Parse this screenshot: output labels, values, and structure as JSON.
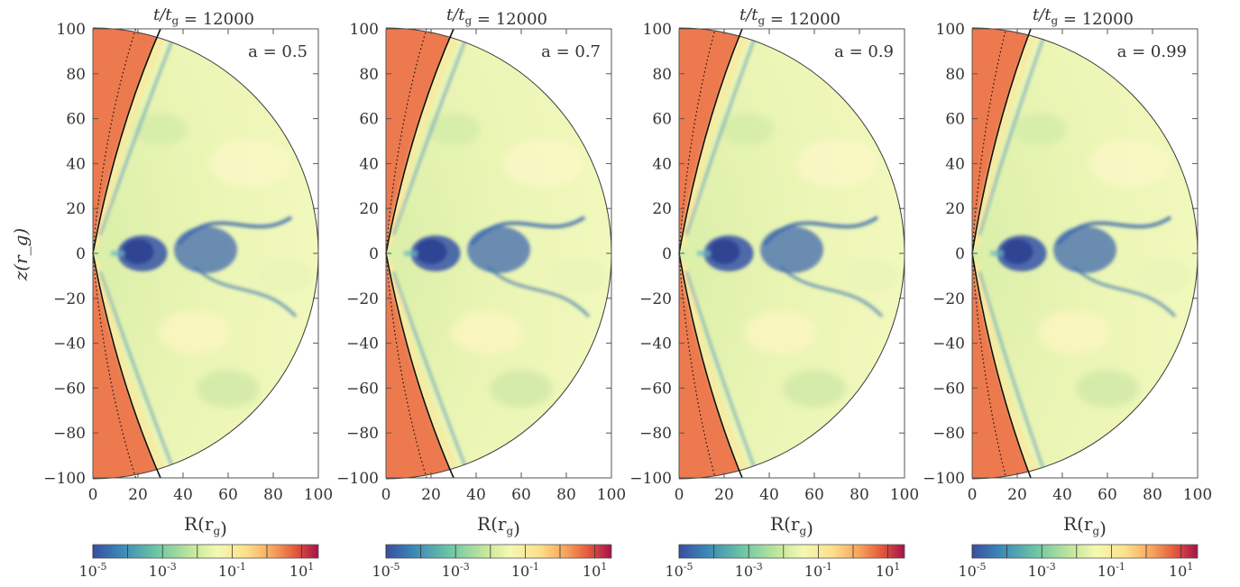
{
  "figure": {
    "ylabel": "z(r_g)",
    "xlabel": "R(r_g)"
  },
  "chart_data": [
    {
      "type": "heatmap",
      "title": "t/t_g = 12000",
      "annotation": "a = 0.5",
      "xlim": [
        0,
        100
      ],
      "ylim": [
        -100,
        100
      ],
      "xticks": [
        0,
        20,
        40,
        60,
        80,
        100
      ],
      "yticks": [
        100,
        80,
        60,
        40,
        20,
        0,
        -20,
        -40,
        -60,
        -80,
        -100
      ],
      "colorbar": {
        "scale": "log",
        "range": [
          1e-05,
          30
        ],
        "ticks": [
          "10^-5",
          "10^-3",
          "10^-1",
          "10^1"
        ]
      },
      "jet_boundary_R_at_edge": 30,
      "dotted_boundary_R_at_edge": 19
    },
    {
      "type": "heatmap",
      "title": "t/t_g = 12000",
      "annotation": "a = 0.7",
      "xlim": [
        0,
        100
      ],
      "ylim": [
        -100,
        100
      ],
      "xticks": [
        0,
        20,
        40,
        60,
        80,
        100
      ],
      "yticks": [
        100,
        80,
        60,
        40,
        20,
        0,
        -20,
        -40,
        -60,
        -80,
        -100
      ],
      "colorbar": {
        "scale": "log",
        "range": [
          1e-05,
          30
        ],
        "ticks": [
          "10^-5",
          "10^-3",
          "10^-1",
          "10^1"
        ]
      },
      "jet_boundary_R_at_edge": 30,
      "dotted_boundary_R_at_edge": 18
    },
    {
      "type": "heatmap",
      "title": "t/t_g = 12000",
      "annotation": "a = 0.9",
      "xlim": [
        0,
        100
      ],
      "ylim": [
        -100,
        100
      ],
      "xticks": [
        0,
        20,
        40,
        60,
        80,
        100
      ],
      "yticks": [
        100,
        80,
        60,
        40,
        20,
        0,
        -20,
        -40,
        -60,
        -80,
        -100
      ],
      "colorbar": {
        "scale": "log",
        "range": [
          1e-05,
          30
        ],
        "ticks": [
          "10^-5",
          "10^-3",
          "10^-1",
          "10^1"
        ]
      },
      "jet_boundary_R_at_edge": 28,
      "dotted_boundary_R_at_edge": 16
    },
    {
      "type": "heatmap",
      "title": "t/t_g = 12000",
      "annotation": "a = 0.99",
      "xlim": [
        0,
        100
      ],
      "ylim": [
        -100,
        100
      ],
      "xticks": [
        0,
        20,
        40,
        60,
        80,
        100
      ],
      "yticks": [
        100,
        80,
        60,
        40,
        20,
        0,
        -20,
        -40,
        -60,
        -80,
        -100
      ],
      "colorbar": {
        "scale": "log",
        "range": [
          1e-05,
          30
        ],
        "ticks": [
          "10^-5",
          "10^-3",
          "10^-1",
          "10^1"
        ]
      },
      "jet_boundary_R_at_edge": 26,
      "dotted_boundary_R_at_edge": 15
    }
  ]
}
